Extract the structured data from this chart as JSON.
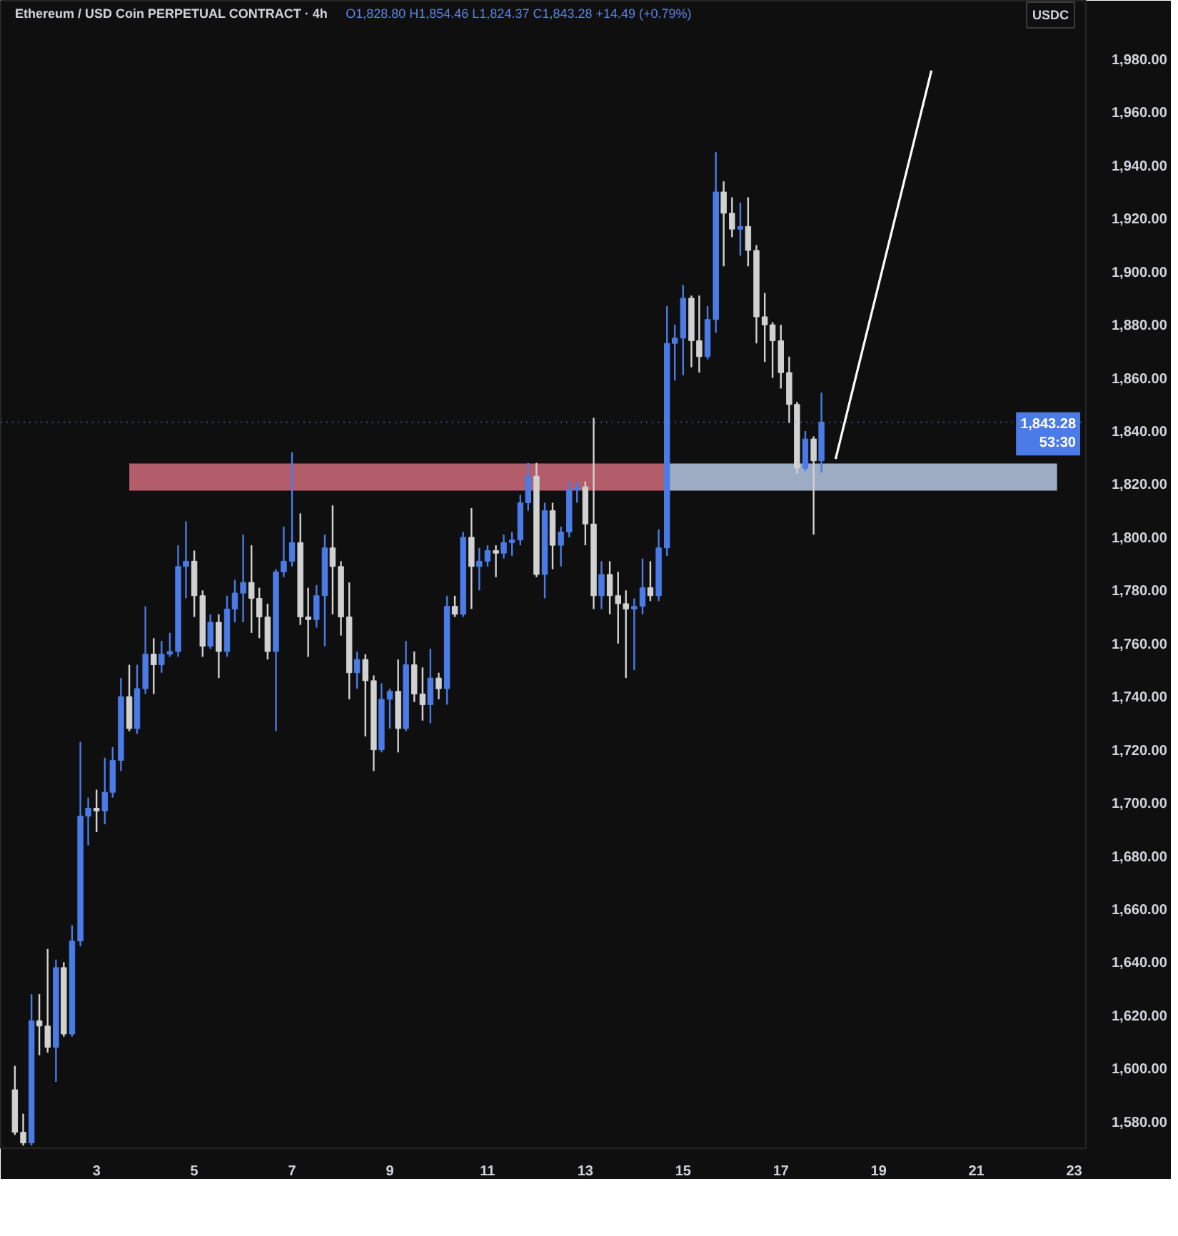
{
  "chart_data": {
    "type": "candlestick",
    "title": "Ethereum / USD Coin PERPETUAL CONTRACT · 4h",
    "subtitle": "O1,828.80 H1,854.46 L1,824.37 C1,843.28 +14.49 (+0.79%)",
    "ylabel": "USDC",
    "x": [
      1.33,
      1.5,
      1.67,
      1.83,
      2,
      2.17,
      2.33,
      2.5,
      2.67,
      2.83,
      3,
      3.17,
      3.33,
      3.5,
      3.67,
      3.83,
      4,
      4.17,
      4.33,
      4.5,
      4.67,
      4.83,
      5,
      5.17,
      5.33,
      5.5,
      5.67,
      5.83,
      6,
      6.17,
      6.33,
      6.5,
      6.67,
      6.83,
      7,
      7.17,
      7.33,
      7.5,
      7.67,
      7.83,
      8,
      8.17,
      8.33,
      8.5,
      8.67,
      8.83,
      9,
      9.17,
      9.33,
      9.5,
      9.67,
      9.83,
      10,
      10.17,
      10.33,
      10.5,
      10.67,
      10.83,
      11,
      11.17,
      11.33,
      11.5,
      11.67,
      11.83,
      12,
      12.17,
      12.33,
      12.5,
      12.67,
      12.83,
      13,
      13.17,
      13.33,
      13.5,
      13.67,
      13.83,
      14,
      14.17,
      14.33,
      14.5,
      14.67,
      14.83,
      15,
      15.17,
      15.33,
      15.5,
      15.67,
      15.83,
      16,
      16.17,
      16.33,
      16.5,
      16.67,
      16.83,
      17,
      17.17,
      17.33,
      17.5,
      17.67,
      17.83
    ],
    "ohlc": [
      [
        1592,
        1601,
        1575,
        1576
      ],
      [
        1576,
        1583,
        1571,
        1572
      ],
      [
        1572,
        1628,
        1571,
        1618
      ],
      [
        1618,
        1628,
        1605,
        1616
      ],
      [
        1616,
        1645,
        1606,
        1608
      ],
      [
        1608,
        1641,
        1595,
        1638
      ],
      [
        1638,
        1640,
        1612,
        1613
      ],
      [
        1613,
        1654,
        1612,
        1648
      ],
      [
        1648,
        1723,
        1646,
        1695
      ],
      [
        1695,
        1702,
        1684,
        1698
      ],
      [
        1698,
        1705,
        1689,
        1697
      ],
      [
        1697,
        1717,
        1692,
        1704
      ],
      [
        1704,
        1721,
        1702,
        1716
      ],
      [
        1716,
        1747,
        1712,
        1740
      ],
      [
        1740,
        1752,
        1727,
        1728
      ],
      [
        1728,
        1752,
        1726,
        1743
      ],
      [
        1743,
        1774,
        1741,
        1756
      ],
      [
        1756,
        1762,
        1741,
        1752
      ],
      [
        1752,
        1761,
        1749,
        1756
      ],
      [
        1756,
        1764,
        1755,
        1757
      ],
      [
        1757,
        1797,
        1755,
        1789
      ],
      [
        1789,
        1806,
        1777,
        1791
      ],
      [
        1791,
        1795,
        1770,
        1778
      ],
      [
        1778,
        1780,
        1755,
        1759
      ],
      [
        1759,
        1771,
        1758,
        1768
      ],
      [
        1768,
        1771,
        1747,
        1757
      ],
      [
        1757,
        1778,
        1755,
        1773
      ],
      [
        1773,
        1784,
        1768,
        1779
      ],
      [
        1779,
        1801,
        1768,
        1783
      ],
      [
        1783,
        1797,
        1764,
        1777
      ],
      [
        1777,
        1781,
        1762,
        1770
      ],
      [
        1770,
        1775,
        1754,
        1757
      ],
      [
        1757,
        1788,
        1727,
        1787
      ],
      [
        1787,
        1804,
        1785,
        1791
      ],
      [
        1791,
        1832,
        1789,
        1798
      ],
      [
        1798,
        1809,
        1767,
        1770
      ],
      [
        1770,
        1781,
        1755,
        1769
      ],
      [
        1769,
        1782,
        1766,
        1778
      ],
      [
        1778,
        1801,
        1759,
        1796
      ],
      [
        1796,
        1812,
        1771,
        1789
      ],
      [
        1789,
        1791,
        1763,
        1770
      ],
      [
        1770,
        1783,
        1739,
        1749
      ],
      [
        1749,
        1757,
        1743,
        1754
      ],
      [
        1754,
        1756,
        1725,
        1746
      ],
      [
        1746,
        1748,
        1712,
        1720
      ],
      [
        1720,
        1745,
        1719,
        1739
      ],
      [
        1739,
        1743,
        1728,
        1742
      ],
      [
        1742,
        1754,
        1719,
        1728
      ],
      [
        1728,
        1761,
        1727,
        1752
      ],
      [
        1752,
        1757,
        1738,
        1741
      ],
      [
        1741,
        1751,
        1731,
        1737
      ],
      [
        1737,
        1758,
        1730,
        1747
      ],
      [
        1747,
        1749,
        1739,
        1743
      ],
      [
        1743,
        1778,
        1737,
        1774
      ],
      [
        1774,
        1778,
        1770,
        1771
      ],
      [
        1771,
        1802,
        1770,
        1800
      ],
      [
        1800,
        1811,
        1773,
        1789
      ],
      [
        1789,
        1796,
        1780,
        1791
      ],
      [
        1791,
        1797,
        1789,
        1795
      ],
      [
        1795,
        1797,
        1785,
        1794
      ],
      [
        1794,
        1801,
        1792,
        1798
      ],
      [
        1798,
        1802,
        1793,
        1799
      ],
      [
        1799,
        1816,
        1797,
        1813
      ],
      [
        1813,
        1828,
        1810,
        1823
      ],
      [
        1823,
        1828,
        1785,
        1786
      ],
      [
        1786,
        1813,
        1777,
        1810
      ],
      [
        1810,
        1813,
        1788,
        1797
      ],
      [
        1797,
        1804,
        1789,
        1802
      ],
      [
        1802,
        1821,
        1800,
        1818
      ],
      [
        1818,
        1821,
        1813,
        1819
      ],
      [
        1819,
        1821,
        1797,
        1805
      ],
      [
        1805,
        1845,
        1773,
        1778
      ],
      [
        1778,
        1791,
        1773,
        1786
      ],
      [
        1786,
        1791,
        1771,
        1778
      ],
      [
        1778,
        1787,
        1760,
        1775
      ],
      [
        1775,
        1780,
        1747,
        1773
      ],
      [
        1773,
        1777,
        1750,
        1774
      ],
      [
        1774,
        1792,
        1771,
        1781
      ],
      [
        1781,
        1791,
        1776,
        1778
      ],
      [
        1778,
        1803,
        1776,
        1796
      ],
      [
        1796,
        1887,
        1793,
        1873
      ],
      [
        1873,
        1880,
        1859,
        1875
      ],
      [
        1875,
        1895,
        1861,
        1890
      ],
      [
        1890,
        1891,
        1864,
        1874
      ],
      [
        1874,
        1891,
        1862,
        1868
      ],
      [
        1868,
        1887,
        1867,
        1882
      ],
      [
        1882,
        1945,
        1877,
        1930
      ],
      [
        1930,
        1934,
        1902,
        1922
      ],
      [
        1922,
        1928,
        1913,
        1916
      ],
      [
        1916,
        1926,
        1906,
        1917
      ],
      [
        1917,
        1928,
        1902,
        1908
      ],
      [
        1908,
        1910,
        1873,
        1883
      ],
      [
        1883,
        1892,
        1866,
        1880
      ],
      [
        1880,
        1881,
        1860,
        1874
      ],
      [
        1874,
        1880,
        1856,
        1862
      ],
      [
        1862,
        1868,
        1843,
        1850
      ],
      [
        1850,
        1851,
        1824,
        1826
      ],
      [
        1826,
        1840,
        1825,
        1837
      ],
      [
        1837,
        1838,
        1801,
        1828.8
      ],
      [
        1828.8,
        1854.46,
        1824.37,
        1843.28
      ]
    ],
    "colors": [
      "#d1d1d1",
      "#d1d1d1",
      "#4a7be6",
      "#d1d1d1",
      "#d1d1d1",
      "#4a7be6",
      "#d1d1d1",
      "#4a7be6",
      "#4a7be6",
      "#4a7be6",
      "#d1d1d1",
      "#4a7be6",
      "#4a7be6",
      "#4a7be6",
      "#d1d1d1",
      "#4a7be6",
      "#4a7be6",
      "#d1d1d1",
      "#4a7be6",
      "#4a7be6",
      "#4a7be6",
      "#4a7be6",
      "#d1d1d1",
      "#d1d1d1",
      "#4a7be6",
      "#d1d1d1",
      "#4a7be6",
      "#4a7be6",
      "#4a7be6",
      "#d1d1d1",
      "#d1d1d1",
      "#d1d1d1",
      "#4a7be6",
      "#4a7be6",
      "#4a7be6",
      "#d1d1d1",
      "#d1d1d1",
      "#4a7be6",
      "#4a7be6",
      "#d1d1d1",
      "#d1d1d1",
      "#d1d1d1",
      "#4a7be6",
      "#d1d1d1",
      "#d1d1d1",
      "#4a7be6",
      "#4a7be6",
      "#d1d1d1",
      "#4a7be6",
      "#d1d1d1",
      "#d1d1d1",
      "#4a7be6",
      "#d1d1d1",
      "#4a7be6",
      "#d1d1d1",
      "#4a7be6",
      "#d1d1d1",
      "#4a7be6",
      "#4a7be6",
      "#d1d1d1",
      "#4a7be6",
      "#4a7be6",
      "#4a7be6",
      "#4a7be6",
      "#d1d1d1",
      "#4a7be6",
      "#d1d1d1",
      "#4a7be6",
      "#4a7be6",
      "#4a7be6",
      "#d1d1d1",
      "#d1d1d1",
      "#4a7be6",
      "#d1d1d1",
      "#d1d1d1",
      "#d1d1d1",
      "#4a7be6",
      "#4a7be6",
      "#d1d1d1",
      "#4a7be6",
      "#4a7be6",
      "#4a7be6",
      "#4a7be6",
      "#d1d1d1",
      "#d1d1d1",
      "#4a7be6",
      "#4a7be6",
      "#d1d1d1",
      "#d1d1d1",
      "#4a7be6",
      "#d1d1d1",
      "#d1d1d1",
      "#d1d1d1",
      "#d1d1d1",
      "#d1d1d1",
      "#d1d1d1",
      "#d1d1d1",
      "#4a7be6",
      "#d1d1d1",
      "#4a7be6"
    ],
    "series": [
      {
        "type": "line",
        "color": "#b35d6b",
        "x": [
          3.67,
          14.62
        ],
        "values": [
          null,
          null
        ],
        "lower": [
          1817.6,
          1817.6
        ],
        "upper": [
          1827.8,
          1827.8
        ]
      },
      {
        "type": "line",
        "color": "#9dabc3",
        "x": [
          14.62,
          22.65
        ],
        "values": [
          null,
          null
        ],
        "lower": [
          1817.6,
          1817.6
        ],
        "upper": [
          1827.8,
          1827.8
        ]
      },
      {
        "type": "line",
        "color": "#ffffff",
        "x": [
          18.12,
          20.08
        ],
        "values": [
          1829.5,
          1975.7
        ]
      }
    ],
    "ref_lines": [
      {
        "axis": "y",
        "value": 1843.28,
        "label": "1,843.28\n53:30",
        "color": "#4a7be6",
        "line_style": "dotted"
      }
    ],
    "xlim": [
      1.04,
      23.24
    ],
    "ylim": [
      1570,
      2002
    ],
    "xticks": [
      3,
      5,
      7,
      9,
      11,
      13,
      15,
      17,
      19,
      21,
      23
    ],
    "yticks": [
      {
        "value": 1580,
        "label": "1,580.00"
      },
      {
        "value": 1600,
        "label": "1,600.00"
      },
      {
        "value": 1620,
        "label": "1,620.00"
      },
      {
        "value": 1640,
        "label": "1,640.00"
      },
      {
        "value": 1660,
        "label": "1,660.00"
      },
      {
        "value": 1680,
        "label": "1,680.00"
      },
      {
        "value": 1700,
        "label": "1,700.00"
      },
      {
        "value": 1720,
        "label": "1,720.00"
      },
      {
        "value": 1740,
        "label": "1,740.00"
      },
      {
        "value": 1760,
        "label": "1,760.00"
      },
      {
        "value": 1780,
        "label": "1,780.00"
      },
      {
        "value": 1800,
        "label": "1,800.00"
      },
      {
        "value": 1820,
        "label": "1,820.00"
      },
      {
        "value": 1840,
        "label": "1,840.00"
      },
      {
        "value": 1860,
        "label": "1,860.00"
      },
      {
        "value": 1880,
        "label": "1,880.00"
      },
      {
        "value": 1900,
        "label": "1,900.00"
      },
      {
        "value": 1920,
        "label": "1,920.00"
      },
      {
        "value": 1940,
        "label": "1,940.00"
      },
      {
        "value": 1960,
        "label": "1,960.00"
      },
      {
        "value": 1980,
        "label": "1,980.00"
      }
    ]
  }
}
